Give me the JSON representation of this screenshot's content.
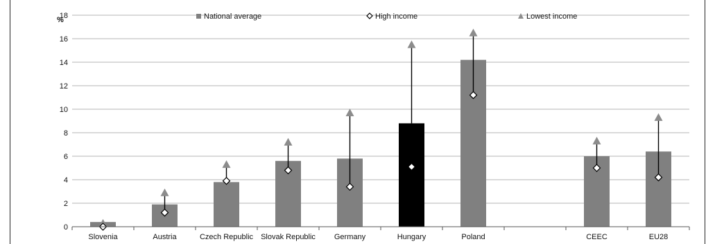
{
  "chart_data": {
    "type": "bar",
    "ylabel": "%",
    "ylim": [
      0,
      18
    ],
    "yticks": [
      0,
      2,
      4,
      6,
      8,
      10,
      12,
      14,
      16,
      18
    ],
    "grid": true,
    "legend_position": "top",
    "categories": [
      "Slovenia",
      "Austria",
      "Czech Republic",
      "Slovak Republic",
      "Germany",
      "Hungary",
      "Poland",
      "",
      "CEEC",
      "EU28"
    ],
    "series": [
      {
        "name": "National average",
        "marker": "bar",
        "values": [
          0.4,
          1.9,
          3.8,
          5.6,
          5.8,
          8.8,
          14.2,
          null,
          6.0,
          6.4
        ]
      },
      {
        "name": "High income",
        "marker": "diamond",
        "values": [
          0.0,
          1.2,
          3.9,
          4.8,
          3.4,
          5.1,
          11.2,
          null,
          5.0,
          4.2
        ]
      },
      {
        "name": "Lowest income",
        "marker": "triangle",
        "values": [
          0.3,
          2.9,
          5.3,
          7.2,
          9.7,
          15.5,
          16.5,
          null,
          7.3,
          9.3
        ]
      }
    ],
    "bar_colors": [
      "#808080",
      "#808080",
      "#808080",
      "#808080",
      "#808080",
      "#000000",
      "#808080",
      null,
      "#808080",
      "#808080"
    ]
  },
  "colors": {
    "bar": "#808080",
    "highlight_bar": "#000000",
    "triangle": "#8c8c8c",
    "grid": "#b5b5b5"
  }
}
